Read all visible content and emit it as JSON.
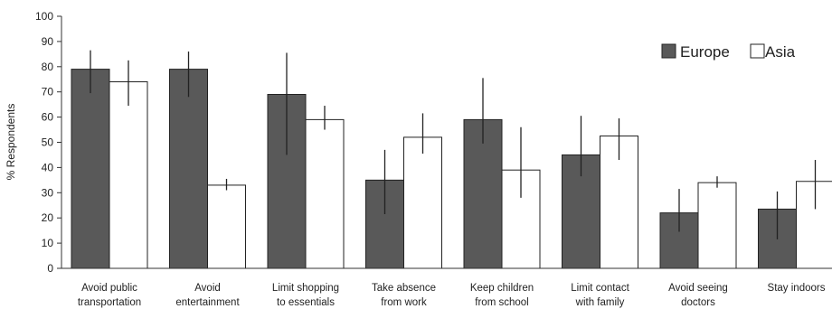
{
  "chart_data": {
    "type": "bar",
    "ylabel": "% Respondents",
    "ylim": [
      0,
      100
    ],
    "yticks": [
      0,
      10,
      20,
      30,
      40,
      50,
      60,
      70,
      80,
      90,
      100
    ],
    "grid": false,
    "legend_position": "top-right",
    "categories": [
      [
        "Avoid public",
        "transportation"
      ],
      [
        "Avoid",
        "entertainment"
      ],
      [
        "Limit shopping",
        "to essentials"
      ],
      [
        "Take absence",
        "from work"
      ],
      [
        "Keep children",
        "from school"
      ],
      [
        "Limit contact",
        "with family"
      ],
      [
        "Avoid seeing",
        "doctors"
      ],
      [
        "Stay indoors"
      ]
    ],
    "series": [
      {
        "name": "Europe",
        "color": "#595959",
        "values": [
          79,
          79,
          69,
          35,
          59,
          45,
          22,
          23.5
        ],
        "error_low": [
          69.5,
          68,
          45,
          21.5,
          49.5,
          36.5,
          14.5,
          11.5
        ],
        "error_high": [
          86.5,
          86,
          85.5,
          47,
          75.5,
          60.5,
          31.5,
          30.5
        ]
      },
      {
        "name": "Asia",
        "color": "#ffffff",
        "values": [
          74,
          33,
          59,
          52,
          39,
          52.5,
          34,
          34.5
        ],
        "error_low": [
          64.5,
          31,
          55,
          45.5,
          28,
          43,
          32,
          23.5
        ],
        "error_high": [
          82.5,
          35.5,
          64.5,
          61.5,
          56,
          59.5,
          36.5,
          43
        ]
      }
    ]
  }
}
